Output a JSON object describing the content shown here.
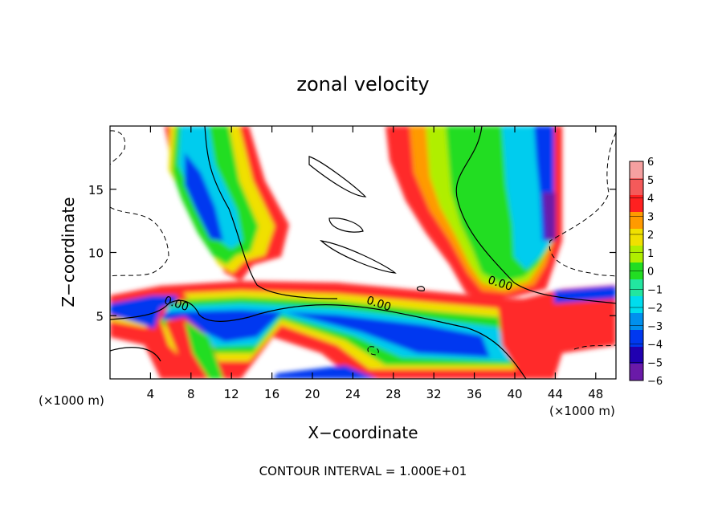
{
  "chart_data": {
    "type": "heatmap",
    "title": "zonal velocity",
    "xlabel": "X−coordinate",
    "ylabel": "Z−coordinate",
    "x_unit_left": "(×1000 m)",
    "x_unit_right": "(×1000 m)",
    "footer": "CONTOUR INTERVAL = 1.000E+01",
    "xlim": [
      0,
      50
    ],
    "ylim": [
      0,
      20
    ],
    "x_ticks": [
      4,
      8,
      12,
      16,
      20,
      24,
      28,
      32,
      36,
      40,
      44,
      48
    ],
    "y_ticks": [
      5,
      10,
      15
    ],
    "colorbar_levels": [
      "6",
      "5",
      "4",
      "3",
      "2",
      "1",
      "0",
      "−1",
      "−2",
      "−3",
      "−4",
      "−5",
      "−6"
    ],
    "colorbar_colors": [
      "#f5a0a0",
      "#f45a5a",
      "#ff2020",
      "#ff9a00",
      "#f0e000",
      "#b0ee00",
      "#22dd22",
      "#22e6a0",
      "#00ddee",
      "#0090ee",
      "#0038f0",
      "#2000b0",
      "#6a1aa8"
    ],
    "contour_labels": [
      {
        "text": "0.00",
        "x": 6.5,
        "y": 5.8
      },
      {
        "text": "0.00",
        "x": 26.5,
        "y": 5.8
      },
      {
        "text": "0.00",
        "x": 38.5,
        "y": 7.4
      }
    ]
  }
}
